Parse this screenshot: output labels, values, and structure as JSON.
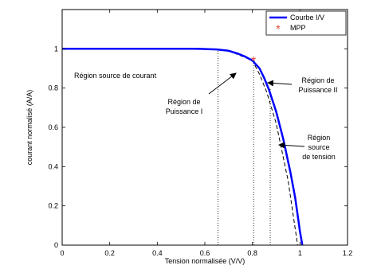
{
  "chart_data": {
    "type": "line",
    "title": "",
    "xlabel": "Tension normalisée (V/V)",
    "ylabel": "courant normalisé (A/A)",
    "xlim": [
      0,
      1.2
    ],
    "ylim": [
      0,
      1.2
    ],
    "xticks": [
      0,
      0.2,
      0.4,
      0.6,
      0.8,
      1,
      1.2
    ],
    "xtick_labels": [
      "0",
      "0.2",
      "0.4",
      "0.6",
      "0.8",
      "1",
      "1.2"
    ],
    "yticks": [
      0,
      0.2,
      0.4,
      0.6,
      0.8,
      1
    ],
    "ytick_labels": [
      "0",
      "0.2",
      "0.4",
      "0.6",
      "0.8",
      "1"
    ],
    "grid": false,
    "legend_position": "top-right",
    "series": [
      {
        "name": "Courbe I/V",
        "style": "solid",
        "color": "#0000ff",
        "x": [
          0,
          0.55,
          0.6,
          0.65,
          0.7,
          0.74,
          0.77,
          0.8,
          0.83,
          0.85,
          0.87,
          0.9,
          0.93,
          0.96,
          0.98,
          1.0,
          1.01
        ],
        "y": [
          1.0,
          1.0,
          0.999,
          0.997,
          0.99,
          0.975,
          0.96,
          0.94,
          0.9,
          0.85,
          0.79,
          0.68,
          0.54,
          0.37,
          0.24,
          0.07,
          0.0
        ]
      },
      {
        "name": "",
        "style": "dashed",
        "color": "#000000",
        "x": [
          0,
          0.6,
          0.65,
          0.7,
          0.74,
          0.77,
          0.8,
          0.83,
          0.86,
          0.9,
          0.95,
          0.99
        ],
        "y": [
          1.0,
          0.999,
          0.996,
          0.99,
          0.97,
          0.955,
          0.94,
          0.87,
          0.78,
          0.62,
          0.33,
          0.0
        ]
      }
    ],
    "mpp": {
      "name": "MPP",
      "x": 0.805,
      "y": 0.94,
      "color": "#e8412f"
    },
    "vertical_lines": [
      {
        "x": 0.655,
        "y_top": 1.0
      },
      {
        "x": 0.805,
        "y_top": 0.94
      },
      {
        "x": 0.875,
        "y_top": 0.8
      }
    ],
    "annotations": [
      {
        "lines": [
          "Région source de courant"
        ],
        "align": "start",
        "arrow": false
      },
      {
        "lines": [
          "Région de",
          "Puissance I"
        ],
        "align": "middle",
        "arrow": true
      },
      {
        "lines": [
          "Région de",
          "Puissance II"
        ],
        "align": "middle",
        "arrow": true
      },
      {
        "lines": [
          "Région",
          "source",
          "de tension"
        ],
        "align": "middle",
        "arrow": true
      }
    ]
  }
}
